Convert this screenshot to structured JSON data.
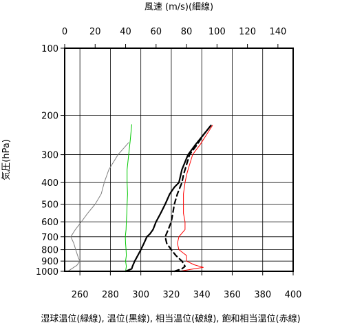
{
  "chart_data": {
    "type": "line",
    "top_axis_title": "風速 (m/s)(細線)",
    "left_axis_title": "気圧(hPa)",
    "bottom_axis_title": "湿球温位(緑線), 温位(黒線), 相当温位(破線), 飽和相当温位(赤線)",
    "y_scale": "log",
    "y_inverted": true,
    "ylim": [
      1000,
      100
    ],
    "y_ticks": [
      100,
      200,
      300,
      400,
      500,
      600,
      700,
      800,
      900,
      1000
    ],
    "y_tick_labels": [
      "100",
      "200",
      "300",
      "400",
      "500",
      "600",
      "700",
      "800",
      "900",
      "1000"
    ],
    "x_bottom_lim": [
      250,
      400
    ],
    "x_bottom_ticks": [
      260,
      280,
      300,
      320,
      340,
      360,
      380,
      400
    ],
    "x_bottom_tick_labels": [
      "260",
      "280",
      "300",
      "320",
      "340",
      "360",
      "380",
      "400"
    ],
    "x_top_lim": [
      0,
      150
    ],
    "x_top_ticks": [
      0,
      20,
      40,
      60,
      80,
      100,
      120,
      140
    ],
    "x_top_tick_labels": [
      "0",
      "20",
      "40",
      "60",
      "80",
      "100",
      "120",
      "140"
    ],
    "grid": true,
    "series": [
      {
        "key": "wind_speed",
        "axis": "top",
        "color": "#808080",
        "style": "thin",
        "points": [
          [
            2,
            1000
          ],
          [
            5,
            970
          ],
          [
            8,
            940
          ],
          [
            10,
            900
          ],
          [
            9,
            870
          ],
          [
            8,
            830
          ],
          [
            7,
            790
          ],
          [
            6,
            750
          ],
          [
            4,
            700
          ],
          [
            7,
            650
          ],
          [
            11,
            600
          ],
          [
            15,
            550
          ],
          [
            20,
            500
          ],
          [
            24,
            450
          ],
          [
            26,
            400
          ],
          [
            29,
            350
          ],
          [
            35,
            300
          ],
          [
            42,
            265
          ]
        ]
      },
      {
        "key": "wet_bulb_potential_temperature",
        "axis": "bottom",
        "color": "#00c800",
        "style": "thin",
        "points": [
          [
            290,
            1000
          ],
          [
            290.5,
            950
          ],
          [
            290,
            900
          ],
          [
            290.5,
            850
          ],
          [
            290.3,
            800
          ],
          [
            290,
            750
          ],
          [
            289.8,
            700
          ],
          [
            290.3,
            650
          ],
          [
            290.5,
            600
          ],
          [
            290.8,
            550
          ],
          [
            291,
            500
          ],
          [
            291.3,
            450
          ],
          [
            291,
            400
          ],
          [
            291,
            350
          ],
          [
            292,
            300
          ],
          [
            293,
            260
          ],
          [
            294,
            220
          ]
        ]
      },
      {
        "key": "potential_temperature",
        "axis": "bottom",
        "color": "#000000",
        "style": "thick",
        "points": [
          [
            290,
            1000
          ],
          [
            294,
            975
          ],
          [
            294.5,
            950
          ],
          [
            296,
            900
          ],
          [
            298,
            850
          ],
          [
            300,
            800
          ],
          [
            302,
            750
          ],
          [
            304,
            700
          ],
          [
            306,
            680
          ],
          [
            308,
            650
          ],
          [
            310,
            600
          ],
          [
            313,
            550
          ],
          [
            316,
            500
          ],
          [
            319,
            450
          ],
          [
            322,
            420
          ],
          [
            325,
            400
          ],
          [
            327,
            350
          ],
          [
            331,
            300
          ],
          [
            336,
            270
          ],
          [
            341,
            245
          ],
          [
            346,
            222
          ]
        ]
      },
      {
        "key": "equivalent_potential_temperature",
        "axis": "bottom",
        "color": "#000000",
        "style": "dashed",
        "points": [
          [
            322,
            1000
          ],
          [
            327,
            975
          ],
          [
            329,
            950
          ],
          [
            327,
            900
          ],
          [
            323,
            850
          ],
          [
            320,
            800
          ],
          [
            317,
            750
          ],
          [
            316,
            700
          ],
          [
            318,
            650
          ],
          [
            320,
            600
          ],
          [
            321,
            550
          ],
          [
            322,
            500
          ],
          [
            324,
            450
          ],
          [
            327,
            400
          ],
          [
            328,
            370
          ],
          [
            329,
            350
          ],
          [
            332,
            300
          ],
          [
            337,
            270
          ],
          [
            341,
            245
          ],
          [
            346,
            222
          ]
        ]
      },
      {
        "key": "saturated_equivalent_potential_temperature",
        "axis": "bottom",
        "color": "#ff0000",
        "style": "thin",
        "points": [
          [
            325,
            1000
          ],
          [
            341,
            960
          ],
          [
            335,
            935
          ],
          [
            330,
            900
          ],
          [
            330,
            850
          ],
          [
            325,
            800
          ],
          [
            324,
            750
          ],
          [
            325,
            700
          ],
          [
            329,
            650
          ],
          [
            329,
            600
          ],
          [
            328,
            550
          ],
          [
            328,
            500
          ],
          [
            328,
            450
          ],
          [
            329,
            400
          ],
          [
            330,
            370
          ],
          [
            331,
            350
          ],
          [
            334,
            300
          ],
          [
            339,
            270
          ],
          [
            343,
            245
          ],
          [
            347,
            222
          ]
        ]
      }
    ]
  }
}
